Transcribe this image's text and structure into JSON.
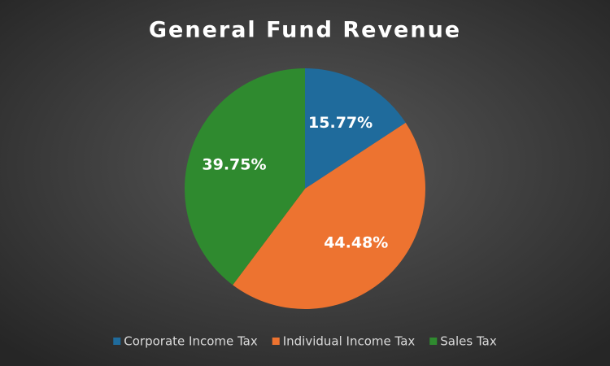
{
  "chart_data": {
    "type": "pie",
    "title": "General Fund Revenue",
    "categories": [
      "Corporate Income Tax",
      "Individual Income Tax",
      "Sales Tax"
    ],
    "values": [
      15.77,
      44.48,
      39.75
    ],
    "value_labels": [
      "15.77%",
      "44.48%",
      "39.75%"
    ],
    "colors": [
      "#1f6b9c",
      "#ed7330",
      "#2f8a2f"
    ],
    "legend": "bottom"
  }
}
